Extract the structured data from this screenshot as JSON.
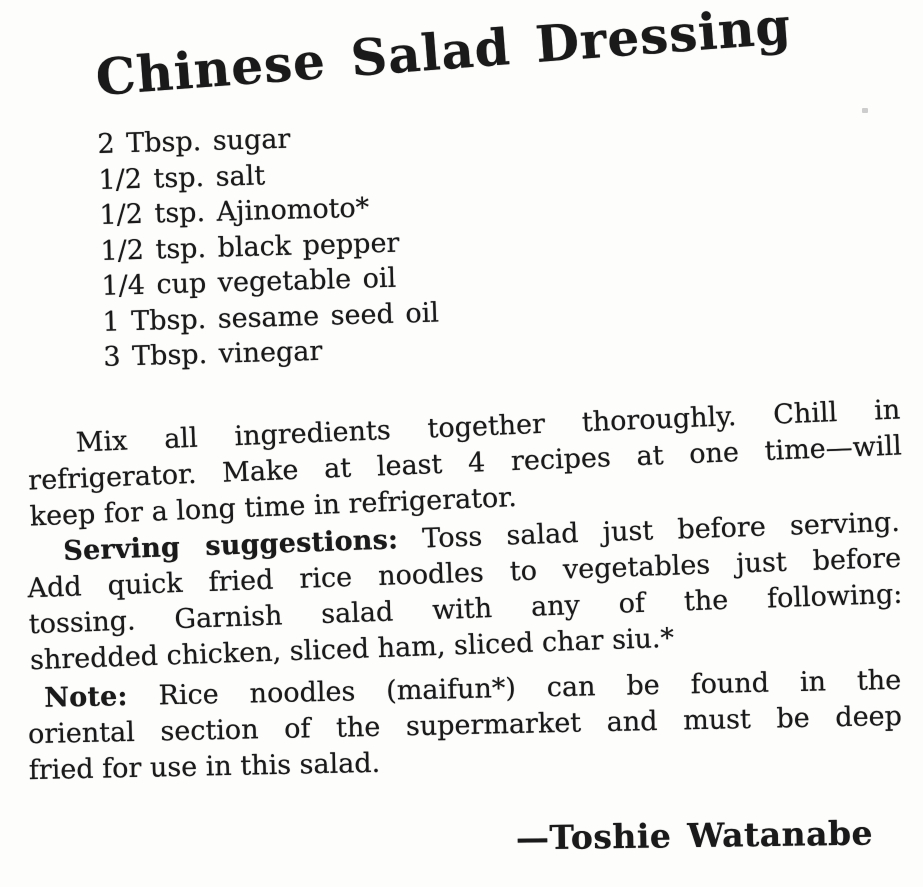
{
  "recipe": {
    "title": "Chinese Salad Dressing",
    "ingredients": [
      "2 Tbsp. sugar",
      "1/2 tsp. salt",
      "1/2 tsp. Ajinomoto*",
      "1/2 tsp. black pepper",
      "1/4 cup vegetable oil",
      "1 Tbsp. sesame seed oil",
      "3 Tbsp. vinegar"
    ],
    "instructions": {
      "lines": [
        "Mix all ingredients together thoroughly. Chill in",
        "refrigerator. Make at least 4 recipes at one time—will",
        "keep for a long time in refrigerator."
      ]
    },
    "serving": {
      "label": "Serving suggestions:",
      "lines": [
        "Toss salad just before serving.",
        "Add quick fried rice noodles to vegetables just before",
        "tossing. Garnish salad with any of the following:",
        "shredded chicken, sliced ham, sliced char siu.*"
      ]
    },
    "note": {
      "label": "Note:",
      "lines": [
        "Rice noodles (maifun*) can be found in the",
        "oriental section of the supermarket and must be deep",
        "fried for use in this salad."
      ]
    },
    "attribution": "—Toshie Watanabe",
    "colors": {
      "ink": "#1a1a1a",
      "paper": "#fdfdfc"
    }
  }
}
